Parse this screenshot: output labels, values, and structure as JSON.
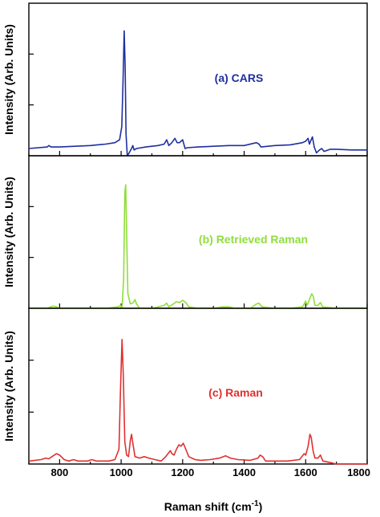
{
  "chart_data": {
    "type": "line",
    "xlabel": "Raman shift (cm",
    "xlabel_superscript": "-1",
    "xlabel_suffix": ")",
    "xlim": [
      700,
      1800
    ],
    "x_ticks": [
      800,
      1000,
      1200,
      1400,
      1600,
      1800
    ],
    "x_tick_labels": [
      "800",
      "1000",
      "1200",
      "1400",
      "1600",
      "1800"
    ],
    "panels": [
      {
        "title": "(a) CARS",
        "ylabel": "Intensity (Arb. Units)",
        "color": "#1f2fa0",
        "ylim": [
          0,
          1.05
        ],
        "y_ticks": [
          0.35,
          0.7
        ],
        "series": [
          {
            "values": [
              [
                700,
                0.05
              ],
              [
                760,
                0.06
              ],
              [
                765,
                0.07
              ],
              [
                772,
                0.06
              ],
              [
                800,
                0.06
              ],
              [
                850,
                0.065
              ],
              [
                900,
                0.07
              ],
              [
                950,
                0.08
              ],
              [
                980,
                0.09
              ],
              [
                995,
                0.11
              ],
              [
                1002,
                0.2
              ],
              [
                1006,
                0.5
              ],
              [
                1010,
                0.86
              ],
              [
                1013,
                0.62
              ],
              [
                1016,
                0.15
              ],
              [
                1020,
                0.0
              ],
              [
                1026,
                0.02
              ],
              [
                1034,
                0.05
              ],
              [
                1038,
                0.07
              ],
              [
                1042,
                0.04
              ],
              [
                1050,
                0.05
              ],
              [
                1080,
                0.06
              ],
              [
                1120,
                0.07
              ],
              [
                1140,
                0.08
              ],
              [
                1148,
                0.11
              ],
              [
                1155,
                0.07
              ],
              [
                1165,
                0.09
              ],
              [
                1175,
                0.12
              ],
              [
                1182,
                0.09
              ],
              [
                1190,
                0.09
              ],
              [
                1200,
                0.11
              ],
              [
                1208,
                0.05
              ],
              [
                1215,
                0.055
              ],
              [
                1250,
                0.06
              ],
              [
                1300,
                0.065
              ],
              [
                1350,
                0.07
              ],
              [
                1400,
                0.07
              ],
              [
                1440,
                0.09
              ],
              [
                1448,
                0.08
              ],
              [
                1455,
                0.06
              ],
              [
                1500,
                0.07
              ],
              [
                1550,
                0.075
              ],
              [
                1590,
                0.09
              ],
              [
                1600,
                0.1
              ],
              [
                1608,
                0.12
              ],
              [
                1612,
                0.08
              ],
              [
                1618,
                0.11
              ],
              [
                1622,
                0.13
              ],
              [
                1628,
                0.06
              ],
              [
                1635,
                0.02
              ],
              [
                1645,
                0.04
              ],
              [
                1652,
                0.05
              ],
              [
                1660,
                0.03
              ],
              [
                1680,
                0.045
              ],
              [
                1700,
                0.045
              ],
              [
                1750,
                0.04
              ],
              [
                1800,
                0.04
              ]
            ]
          }
        ]
      },
      {
        "title": "(b) Retrieved Raman",
        "ylabel": "Intensity (Arb. Units)",
        "color": "#8fde3a",
        "ylim": [
          0,
          1.05
        ],
        "y_ticks": [
          0.35,
          0.7
        ],
        "series": [
          {
            "values": [
              [
                700,
                0.0
              ],
              [
                760,
                0.0
              ],
              [
                770,
                0.01
              ],
              [
                780,
                0.015
              ],
              [
                790,
                0.01
              ],
              [
                800,
                0.0
              ],
              [
                900,
                0.0
              ],
              [
                950,
                0.0
              ],
              [
                990,
                0.01
              ],
              [
                998,
                0.02
              ],
              [
                1003,
                0.0
              ],
              [
                1008,
                0.2
              ],
              [
                1012,
                0.8
              ],
              [
                1015,
                0.85
              ],
              [
                1018,
                0.5
              ],
              [
                1022,
                0.1
              ],
              [
                1030,
                0.03
              ],
              [
                1040,
                0.04
              ],
              [
                1045,
                0.06
              ],
              [
                1050,
                0.03
              ],
              [
                1060,
                0.0
              ],
              [
                1100,
                0.0
              ],
              [
                1140,
                0.02
              ],
              [
                1148,
                0.035
              ],
              [
                1155,
                0.01
              ],
              [
                1170,
                0.03
              ],
              [
                1180,
                0.045
              ],
              [
                1190,
                0.04
              ],
              [
                1200,
                0.055
              ],
              [
                1210,
                0.04
              ],
              [
                1220,
                0.01
              ],
              [
                1250,
                0.0
              ],
              [
                1300,
                0.0
              ],
              [
                1330,
                0.01
              ],
              [
                1350,
                0.01
              ],
              [
                1370,
                0.0
              ],
              [
                1420,
                0.0
              ],
              [
                1440,
                0.03
              ],
              [
                1448,
                0.035
              ],
              [
                1458,
                0.01
              ],
              [
                1500,
                0.0
              ],
              [
                1550,
                0.0
              ],
              [
                1590,
                0.01
              ],
              [
                1600,
                0.05
              ],
              [
                1605,
                0.02
              ],
              [
                1612,
                0.06
              ],
              [
                1620,
                0.1
              ],
              [
                1625,
                0.08
              ],
              [
                1630,
                0.02
              ],
              [
                1640,
                0.02
              ],
              [
                1648,
                0.04
              ],
              [
                1655,
                0.01
              ],
              [
                1700,
                0.0
              ],
              [
                1800,
                0.0
              ]
            ]
          }
        ]
      },
      {
        "title": "(c) Raman",
        "ylabel": "Intensity (Arb. Units)",
        "color": "#e03030",
        "ylim": [
          0,
          1.05
        ],
        "y_ticks": [
          0.35,
          0.7
        ],
        "series": [
          {
            "values": [
              [
                700,
                0.02
              ],
              [
                740,
                0.03
              ],
              [
                755,
                0.04
              ],
              [
                765,
                0.035
              ],
              [
                775,
                0.05
              ],
              [
                790,
                0.07
              ],
              [
                800,
                0.06
              ],
              [
                815,
                0.03
              ],
              [
                830,
                0.02
              ],
              [
                845,
                0.03
              ],
              [
                860,
                0.02
              ],
              [
                890,
                0.02
              ],
              [
                905,
                0.03
              ],
              [
                920,
                0.02
              ],
              [
                960,
                0.02
              ],
              [
                980,
                0.03
              ],
              [
                993,
                0.1
              ],
              [
                998,
                0.5
              ],
              [
                1003,
                0.84
              ],
              [
                1007,
                0.6
              ],
              [
                1012,
                0.15
              ],
              [
                1018,
                0.06
              ],
              [
                1024,
                0.05
              ],
              [
                1030,
                0.16
              ],
              [
                1034,
                0.2
              ],
              [
                1038,
                0.14
              ],
              [
                1045,
                0.05
              ],
              [
                1060,
                0.04
              ],
              [
                1075,
                0.05
              ],
              [
                1090,
                0.04
              ],
              [
                1110,
                0.03
              ],
              [
                1130,
                0.02
              ],
              [
                1145,
                0.05
              ],
              [
                1160,
                0.09
              ],
              [
                1165,
                0.07
              ],
              [
                1172,
                0.06
              ],
              [
                1180,
                0.1
              ],
              [
                1188,
                0.13
              ],
              [
                1195,
                0.12
              ],
              [
                1202,
                0.14
              ],
              [
                1210,
                0.1
              ],
              [
                1220,
                0.05
              ],
              [
                1240,
                0.03
              ],
              [
                1260,
                0.025
              ],
              [
                1290,
                0.03
              ],
              [
                1320,
                0.04
              ],
              [
                1340,
                0.055
              ],
              [
                1355,
                0.04
              ],
              [
                1380,
                0.03
              ],
              [
                1420,
                0.025
              ],
              [
                1445,
                0.04
              ],
              [
                1452,
                0.06
              ],
              [
                1460,
                0.05
              ],
              [
                1470,
                0.02
              ],
              [
                1500,
                0.02
              ],
              [
                1540,
                0.02
              ],
              [
                1580,
                0.03
              ],
              [
                1595,
                0.07
              ],
              [
                1600,
                0.06
              ],
              [
                1608,
                0.12
              ],
              [
                1614,
                0.2
              ],
              [
                1618,
                0.18
              ],
              [
                1624,
                0.09
              ],
              [
                1630,
                0.04
              ],
              [
                1640,
                0.04
              ],
              [
                1648,
                0.06
              ],
              [
                1656,
                0.02
              ],
              [
                1680,
                0.01
              ],
              [
                1700,
                0.0
              ],
              [
                1800,
                0.0
              ]
            ]
          }
        ]
      }
    ]
  }
}
